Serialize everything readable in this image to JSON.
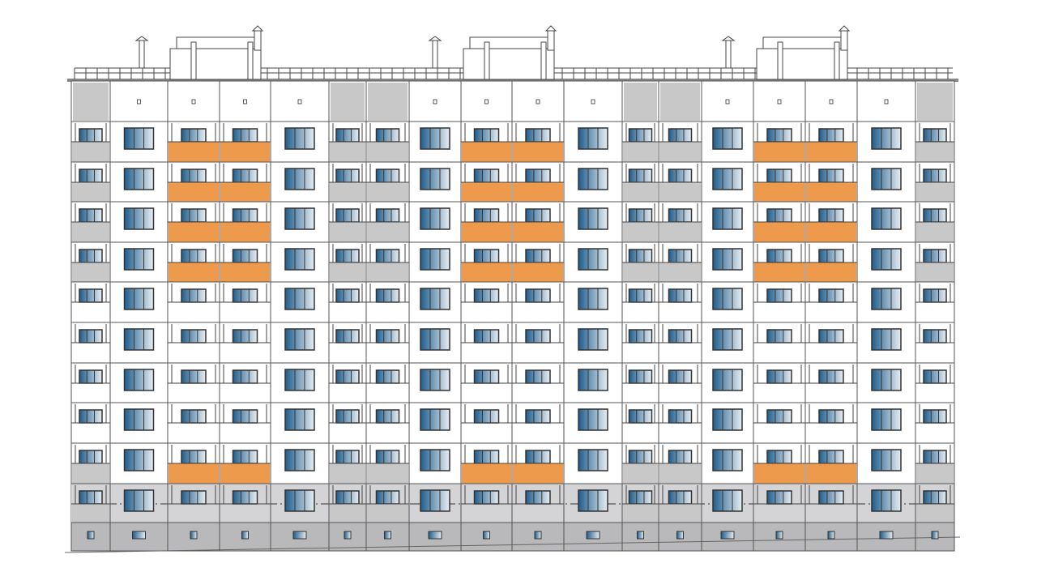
{
  "drawing": {
    "type": "building facade elevation",
    "floors": 10,
    "sections": 3,
    "colors": {
      "wall": "#ffffff",
      "outline": "#555555",
      "balcony_gray": "#c8c8c8",
      "loggia_orange": "#ee9a4d",
      "base_gray": "#b9b9bb",
      "glass_dark": "#1f5d8c",
      "glass_light": "#e8eef3"
    }
  }
}
